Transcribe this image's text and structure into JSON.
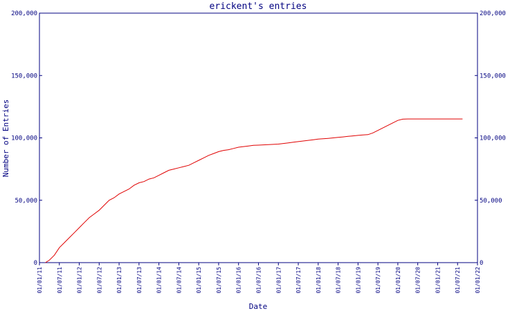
{
  "chart_data": {
    "type": "line",
    "title": "erickent's entries",
    "xlabel": "Date",
    "ylabel": "Number of Entries",
    "ylim": [
      0,
      200000
    ],
    "y_ticks": [
      0,
      50000,
      100000,
      150000,
      200000
    ],
    "y_tick_labels": [
      "0",
      "50,000",
      "100,000",
      "150,000",
      "200,000"
    ],
    "x_tick_labels": [
      "01/01/11",
      "01/07/11",
      "01/01/12",
      "01/07/12",
      "01/01/13",
      "01/07/13",
      "01/01/14",
      "01/07/14",
      "01/01/15",
      "01/07/15",
      "01/01/16",
      "01/07/16",
      "01/01/17",
      "01/07/17",
      "01/01/18",
      "01/07/18",
      "01/01/19",
      "01/07/19",
      "01/01/20",
      "01/07/20",
      "01/01/21",
      "01/07/21",
      "01/01/22"
    ],
    "series": [
      {
        "color": "#e00000",
        "x": [
          0.3,
          0.5,
          0.75,
          1.0,
          1.25,
          1.5,
          1.75,
          2.0,
          2.25,
          2.5,
          2.75,
          3.0,
          3.25,
          3.5,
          3.75,
          4.0,
          4.25,
          4.5,
          4.75,
          5.0,
          5.25,
          5.5,
          5.75,
          6.0,
          6.25,
          6.5,
          6.75,
          7.0,
          7.25,
          7.5,
          7.75,
          8.0,
          8.25,
          8.5,
          8.75,
          9.0,
          9.25,
          9.5,
          9.75,
          10.0,
          10.25,
          10.5,
          10.75,
          11.0,
          11.25,
          11.5,
          11.75,
          12.0,
          12.25,
          12.5,
          12.75,
          13.0,
          13.25,
          13.5,
          13.75,
          14.0,
          14.25,
          14.5,
          14.75,
          15.0,
          15.25,
          15.5,
          15.75,
          16.0,
          16.25,
          16.5,
          16.75,
          17.0,
          17.25,
          17.5,
          17.75,
          18.0,
          18.25,
          18.5,
          18.75,
          19.0,
          19.25,
          19.5,
          19.75,
          20.0,
          20.25,
          20.5,
          20.75,
          21.0,
          21.25,
          21.5,
          21.75,
          21.98
        ],
        "y": [
          0,
          2000,
          6000,
          12000,
          16000,
          20000,
          24000,
          28000,
          32000,
          36000,
          39000,
          42000,
          46000,
          50000,
          52000,
          55000,
          57000,
          59000,
          62000,
          64000,
          65000,
          67000,
          68000,
          70000,
          72000,
          74000,
          75000,
          76000,
          77000,
          78000,
          80000,
          82000,
          84000,
          86000,
          87500,
          89000,
          90000,
          90500,
          91500,
          92500,
          93000,
          93500,
          94000,
          94200,
          94400,
          94600,
          94800,
          95000,
          95500,
          96000,
          96500,
          97000,
          97500,
          98000,
          98500,
          99000,
          99300,
          99600,
          100000,
          100400,
          100800,
          101200,
          101600,
          102000,
          102300,
          102600,
          104000,
          106000,
          108000,
          110000,
          112000,
          114000,
          115000,
          115200,
          115200,
          115200,
          115200,
          115200,
          115200,
          115200,
          115200,
          115200,
          115200,
          115200,
          115200,
          115200,
          115200,
          115200
        ]
      }
    ]
  }
}
